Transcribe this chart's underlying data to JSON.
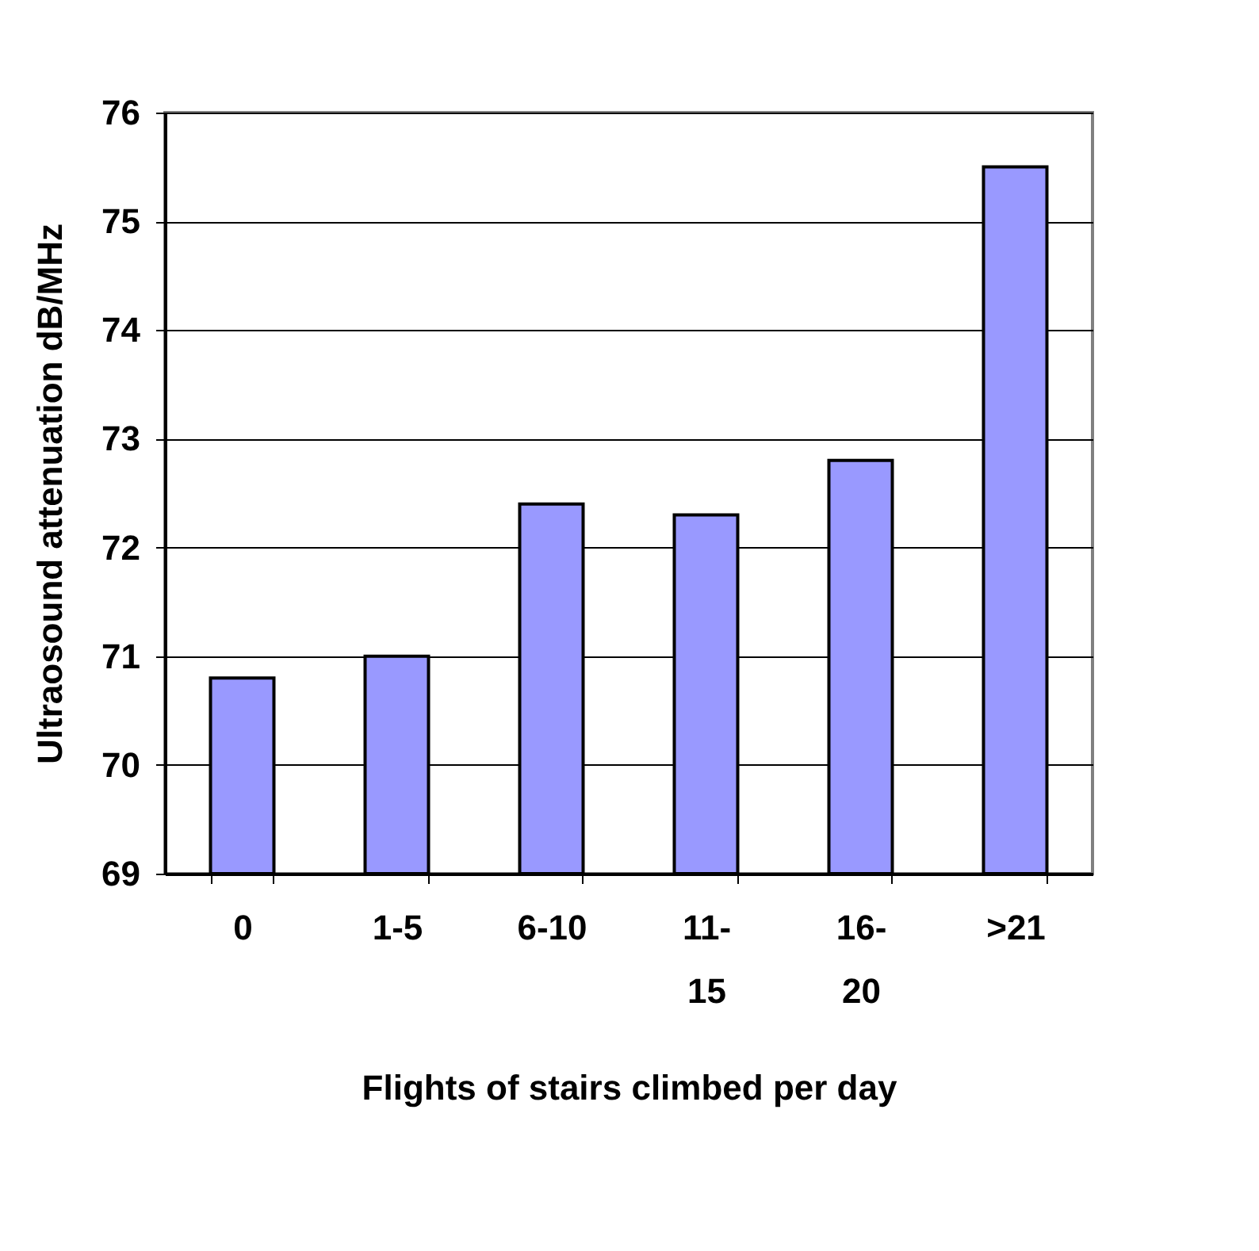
{
  "chart_data": {
    "type": "bar",
    "xlabel": "Flights of stairs climbed per day",
    "ylabel": "Ultraosound attenuation dB/MHz",
    "categories": [
      "0",
      "1-5",
      "6-10",
      "11-15",
      "16-20",
      ">21"
    ],
    "values": [
      70.8,
      71.0,
      72.4,
      72.3,
      72.8,
      75.5
    ],
    "color": "#9999ff",
    "ylim": [
      69,
      76
    ],
    "yticks": [
      69,
      70,
      71,
      72,
      73,
      74,
      75,
      76
    ],
    "grid": "y"
  }
}
